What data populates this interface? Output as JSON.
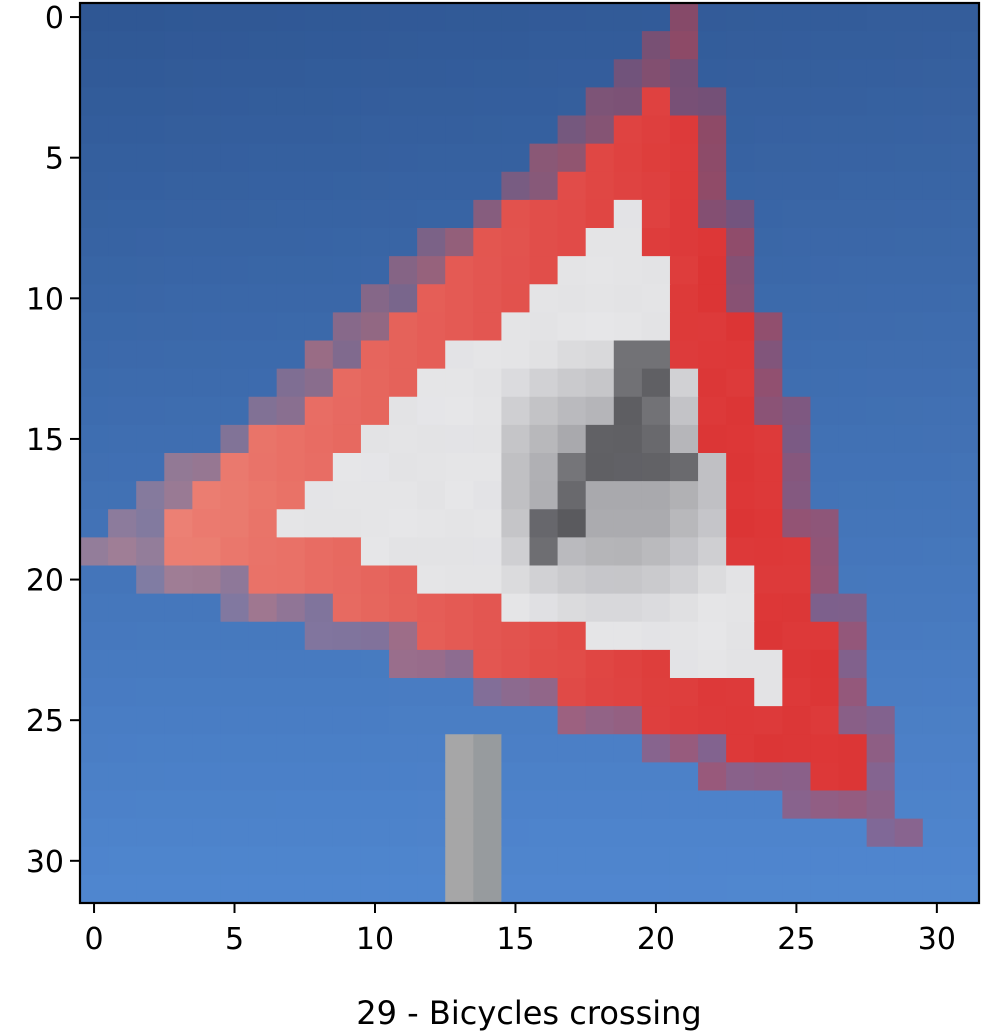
{
  "chart_data": {
    "type": "heatmap",
    "title": "",
    "xlabel": "29 - Bicycles crossing",
    "ylabel": "",
    "image_size": [
      32,
      32
    ],
    "xlim": [
      -0.5,
      31.5
    ],
    "ylim": [
      31.5,
      -0.5
    ],
    "x_ticks": [
      0,
      5,
      10,
      15,
      20,
      25,
      30
    ],
    "x_tick_labels": [
      "0",
      "5",
      "10",
      "15",
      "20",
      "25",
      "30"
    ],
    "y_ticks": [
      0,
      5,
      10,
      15,
      20,
      25,
      30
    ],
    "y_tick_labels": [
      "0",
      "5",
      "10",
      "15",
      "20",
      "25",
      "30"
    ],
    "grid": false,
    "legend": "none",
    "content": "pixelated photo of a red-bordered triangular warning sign (bicycle pictogram) against a blue sky, mounted on a grey pole",
    "colors": {
      "sky_top": "#2f5794",
      "sky_bottom": "#4f86cf",
      "sign_border_red": "#dc3535",
      "sign_border_salmon": "#ef9080",
      "sign_interior": "#e6e6e8",
      "pictogram_dark": "#3a3a3e",
      "pictogram_grey": "#a8a8ac",
      "pole": "#a8a8a8"
    }
  }
}
